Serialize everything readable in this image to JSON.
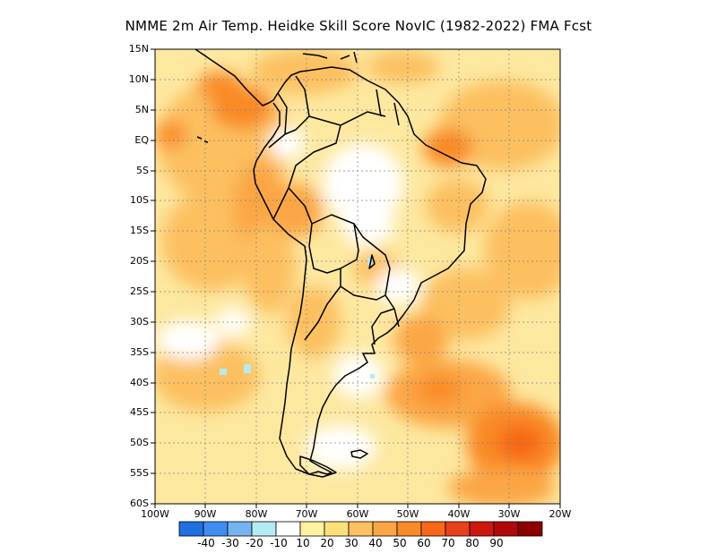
{
  "title": "NMME  2m Air Temp. Heidke Skill Score NovIC (1982-2022) FMA Fcst",
  "lat_labels": [
    "15N",
    "10N",
    "5N",
    "EQ",
    "5S",
    "10S",
    "15S",
    "20S",
    "25S",
    "30S",
    "35S",
    "40S",
    "45S",
    "50S",
    "55S",
    "60S"
  ],
  "lon_labels": [
    "100W",
    "90W",
    "80W",
    "70W",
    "60W",
    "50W",
    "40W",
    "30W",
    "20W"
  ],
  "colorbar": {
    "colors": [
      "#1f6fe0",
      "#3d8ef0",
      "#76b4f0",
      "#b4ecf4",
      "#ffffff",
      "#fff2a0",
      "#fde07a",
      "#fcc060",
      "#fba644",
      "#f98a28",
      "#f76818",
      "#e8401a",
      "#cc1810",
      "#b00a08",
      "#8c0000"
    ],
    "labels": [
      "-40",
      "-30",
      "-20",
      "-10",
      "10",
      "20",
      "30",
      "40",
      "50",
      "60",
      "70",
      "80",
      "90"
    ]
  },
  "chart_data": {
    "type": "heatmap",
    "title": "NMME  2m Air Temp. Heidke Skill Score NovIC (1982-2022) FMA Fcst",
    "xlim": [
      -100,
      -20
    ],
    "ylim": [
      -60,
      15
    ],
    "grid": "dotted",
    "colorbar_position": "bottom"
  }
}
